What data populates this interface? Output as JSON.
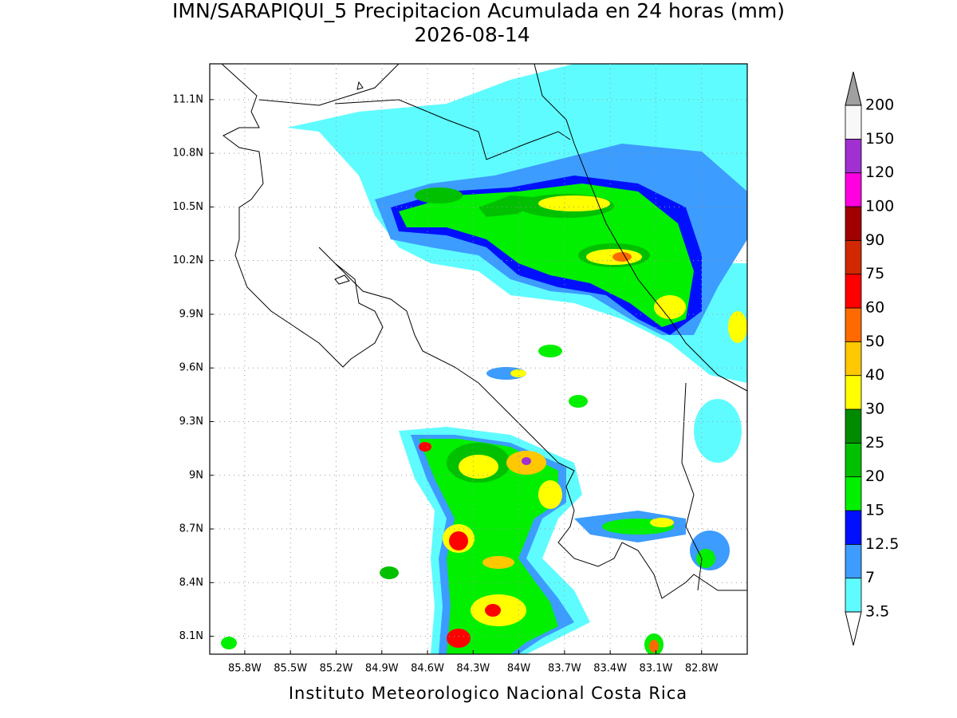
{
  "title": "IMN/SARAPIQUI_5 Precipitacion Acumulada en 24 horas (mm)",
  "subtitle": "2026-08-14",
  "footer": "Instituto Meteorologico Nacional Costa Rica",
  "map": {
    "xlim": [
      -86.03,
      -82.5
    ],
    "ylim": [
      8.0,
      11.3
    ],
    "grid": true,
    "xticks": [
      {
        "value": -85.8,
        "label": "85.8W"
      },
      {
        "value": -85.5,
        "label": "85.5W"
      },
      {
        "value": -85.2,
        "label": "85.2W"
      },
      {
        "value": -84.9,
        "label": "84.9W"
      },
      {
        "value": -84.6,
        "label": "84.6W"
      },
      {
        "value": -84.3,
        "label": "84.3W"
      },
      {
        "value": -84.0,
        "label": "84W"
      },
      {
        "value": -83.7,
        "label": "83.7W"
      },
      {
        "value": -83.4,
        "label": "83.4W"
      },
      {
        "value": -83.1,
        "label": "83.1W"
      },
      {
        "value": -82.8,
        "label": "82.8W"
      }
    ],
    "yticks": [
      {
        "value": 8.1,
        "label": "8.1N"
      },
      {
        "value": 8.4,
        "label": "8.4N"
      },
      {
        "value": 8.7,
        "label": "8.7N"
      },
      {
        "value": 9.0,
        "label": "9N"
      },
      {
        "value": 9.3,
        "label": "9.3N"
      },
      {
        "value": 9.6,
        "label": "9.6N"
      },
      {
        "value": 9.9,
        "label": "9.9N"
      },
      {
        "value": 10.2,
        "label": "10.2N"
      },
      {
        "value": 10.5,
        "label": "10.5N"
      },
      {
        "value": 10.8,
        "label": "10.8N"
      },
      {
        "value": 11.1,
        "label": "11.1N"
      }
    ]
  },
  "colorbar": {
    "levels": [
      3.5,
      7,
      12.5,
      15,
      20,
      25,
      30,
      40,
      50,
      60,
      75,
      90,
      100,
      120,
      150,
      200
    ],
    "colors": [
      "#5ffcff",
      "#3c9cff",
      "#0010ff",
      "#00f000",
      "#00c000",
      "#008a00",
      "#ffff00",
      "#ffc800",
      "#ff6a00",
      "#ff0000",
      "#d02800",
      "#a00000",
      "#ff00e0",
      "#a030d0",
      "#f8f8f8"
    ],
    "under_color": "#ffffff",
    "over_color": "#a0a0a0"
  }
}
